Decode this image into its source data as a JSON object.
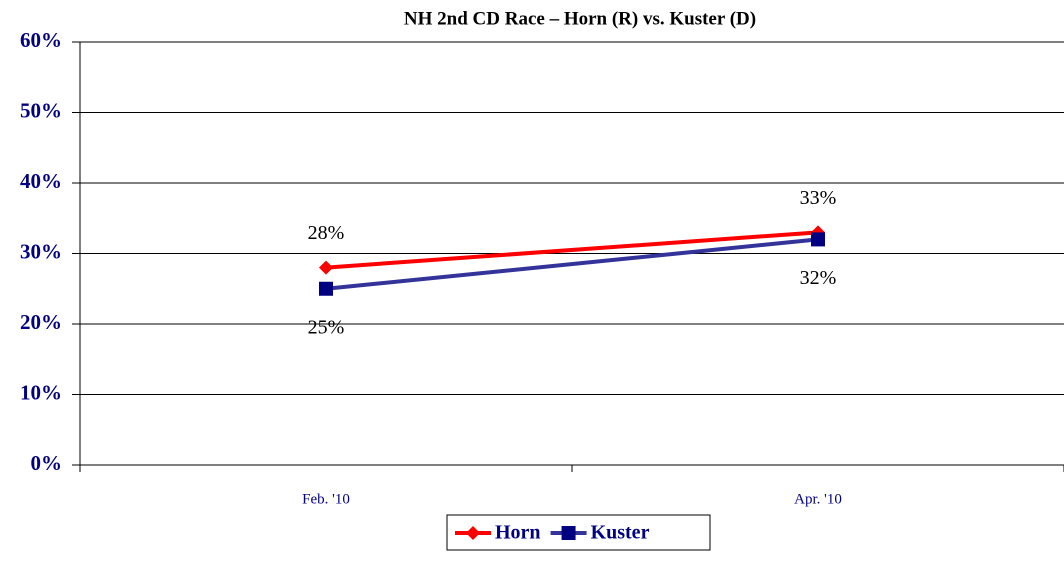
{
  "chart_data": {
    "type": "line",
    "title": "NH 2nd CD Race – Horn (R) vs. Kuster (D)",
    "categories": [
      "Feb. '10",
      "Apr. '10"
    ],
    "series": [
      {
        "name": "Horn",
        "color": "#ff0000",
        "marker": "diamond",
        "values": [
          28,
          33
        ],
        "value_labels": [
          "28%",
          "33%"
        ]
      },
      {
        "name": "Kuster",
        "color": "#333399",
        "marker": "square",
        "values": [
          25,
          32
        ],
        "value_labels": [
          "25%",
          "32%"
        ]
      }
    ],
    "ylim": [
      0,
      60
    ],
    "yticks": [
      {
        "value": 0,
        "label": "0%"
      },
      {
        "value": 10,
        "label": "10%"
      },
      {
        "value": 20,
        "label": "20%"
      },
      {
        "value": 30,
        "label": "30%"
      },
      {
        "value": 40,
        "label": "40%"
      },
      {
        "value": 50,
        "label": "50%"
      },
      {
        "value": 60,
        "label": "60%"
      }
    ],
    "grid": true,
    "legend": "bottom"
  }
}
